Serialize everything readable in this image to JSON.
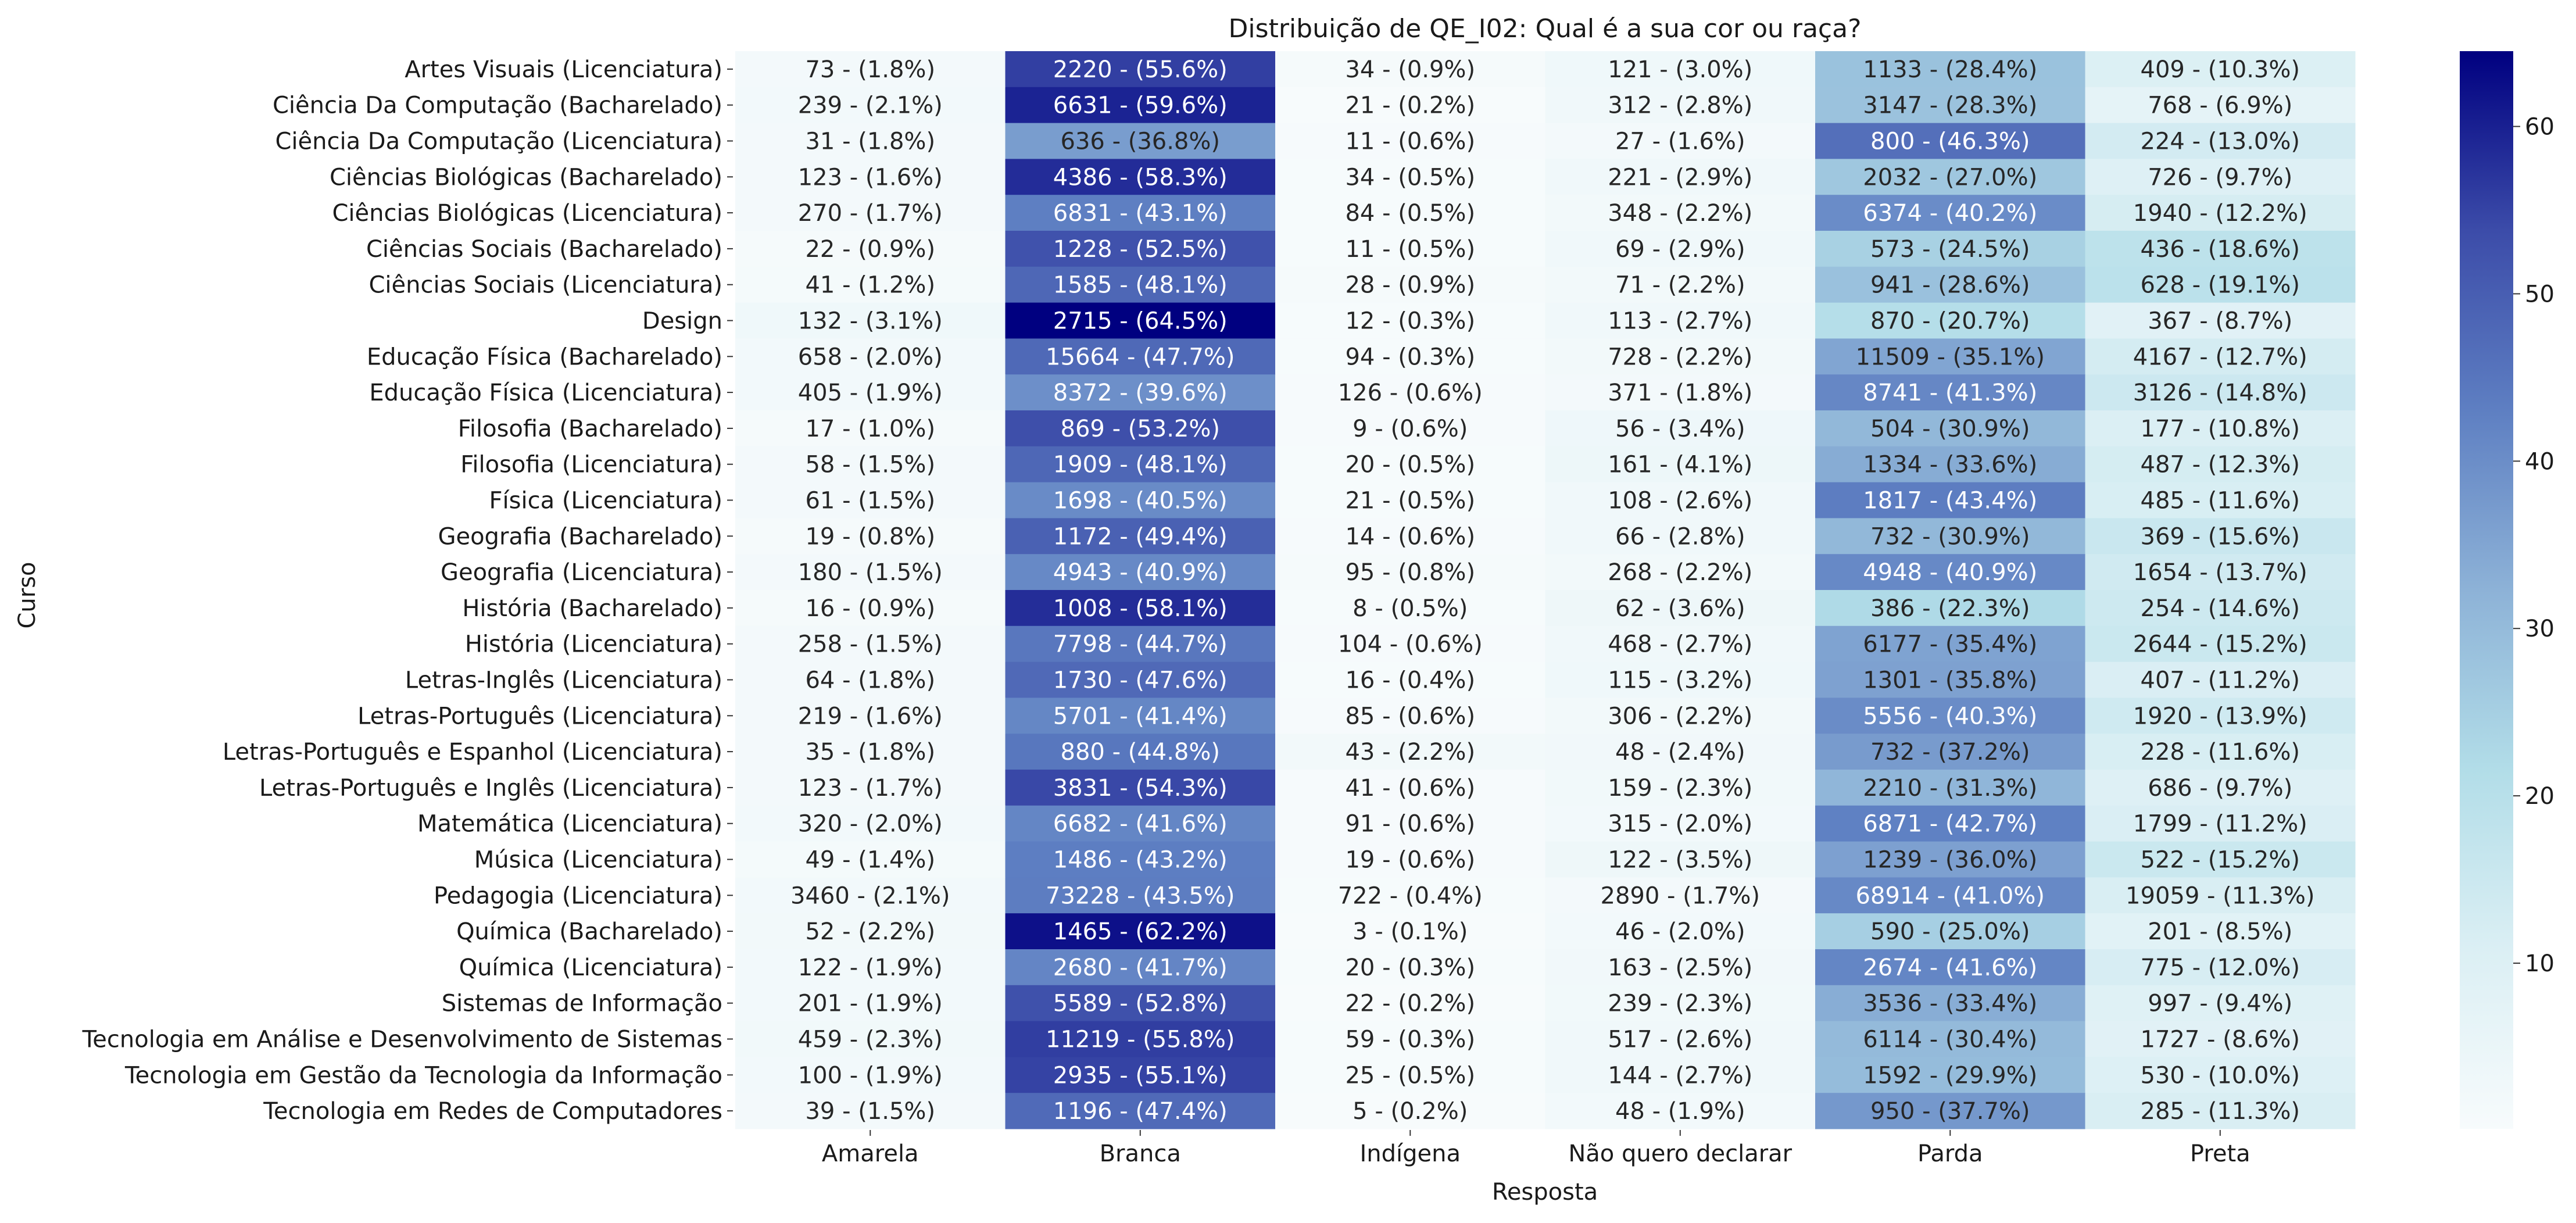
{
  "chart_data": {
    "type": "heatmap",
    "title": "Distribuição de QE_I02: Qual é a sua cor ou raça?",
    "xlabel": "Resposta",
    "ylabel": "Curso",
    "columns": [
      "Amarela",
      "Branca",
      "Indígena",
      "Não quero declarar",
      "Parda",
      "Preta"
    ],
    "rows": [
      {
        "label": "Artes Visuais (Licenciatura)",
        "counts": [
          73,
          2220,
          34,
          121,
          1133,
          409
        ],
        "percents": [
          1.8,
          55.6,
          0.9,
          3.0,
          28.4,
          10.3
        ]
      },
      {
        "label": "Ciência Da Computação (Bacharelado)",
        "counts": [
          239,
          6631,
          21,
          312,
          3147,
          768
        ],
        "percents": [
          2.1,
          59.6,
          0.2,
          2.8,
          28.3,
          6.9
        ]
      },
      {
        "label": "Ciência Da Computação (Licenciatura)",
        "counts": [
          31,
          636,
          11,
          27,
          800,
          224
        ],
        "percents": [
          1.8,
          36.8,
          0.6,
          1.6,
          46.3,
          13.0
        ]
      },
      {
        "label": "Ciências Biológicas (Bacharelado)",
        "counts": [
          123,
          4386,
          34,
          221,
          2032,
          726
        ],
        "percents": [
          1.6,
          58.3,
          0.5,
          2.9,
          27.0,
          9.7
        ]
      },
      {
        "label": "Ciências Biológicas (Licenciatura)",
        "counts": [
          270,
          6831,
          84,
          348,
          6374,
          1940
        ],
        "percents": [
          1.7,
          43.1,
          0.5,
          2.2,
          40.2,
          12.2
        ]
      },
      {
        "label": "Ciências Sociais (Bacharelado)",
        "counts": [
          22,
          1228,
          11,
          69,
          573,
          436
        ],
        "percents": [
          0.9,
          52.5,
          0.5,
          2.9,
          24.5,
          18.6
        ]
      },
      {
        "label": "Ciências Sociais (Licenciatura)",
        "counts": [
          41,
          1585,
          28,
          71,
          941,
          628
        ],
        "percents": [
          1.2,
          48.1,
          0.9,
          2.2,
          28.6,
          19.1
        ]
      },
      {
        "label": "Design",
        "counts": [
          132,
          2715,
          12,
          113,
          870,
          367
        ],
        "percents": [
          3.1,
          64.5,
          0.3,
          2.7,
          20.7,
          8.7
        ]
      },
      {
        "label": "Educação Física (Bacharelado)",
        "counts": [
          658,
          15664,
          94,
          728,
          11509,
          4167
        ],
        "percents": [
          2.0,
          47.7,
          0.3,
          2.2,
          35.1,
          12.7
        ]
      },
      {
        "label": "Educação Física (Licenciatura)",
        "counts": [
          405,
          8372,
          126,
          371,
          8741,
          3126
        ],
        "percents": [
          1.9,
          39.6,
          0.6,
          1.8,
          41.3,
          14.8
        ]
      },
      {
        "label": "Filosofia (Bacharelado)",
        "counts": [
          17,
          869,
          9,
          56,
          504,
          177
        ],
        "percents": [
          1.0,
          53.2,
          0.6,
          3.4,
          30.9,
          10.8
        ]
      },
      {
        "label": "Filosofia (Licenciatura)",
        "counts": [
          58,
          1909,
          20,
          161,
          1334,
          487
        ],
        "percents": [
          1.5,
          48.1,
          0.5,
          4.1,
          33.6,
          12.3
        ]
      },
      {
        "label": "Física (Licenciatura)",
        "counts": [
          61,
          1698,
          21,
          108,
          1817,
          485
        ],
        "percents": [
          1.5,
          40.5,
          0.5,
          2.6,
          43.4,
          11.6
        ]
      },
      {
        "label": "Geografia (Bacharelado)",
        "counts": [
          19,
          1172,
          14,
          66,
          732,
          369
        ],
        "percents": [
          0.8,
          49.4,
          0.6,
          2.8,
          30.9,
          15.6
        ]
      },
      {
        "label": "Geografia (Licenciatura)",
        "counts": [
          180,
          4943,
          95,
          268,
          4948,
          1654
        ],
        "percents": [
          1.5,
          40.9,
          0.8,
          2.2,
          40.9,
          13.7
        ]
      },
      {
        "label": "História (Bacharelado)",
        "counts": [
          16,
          1008,
          8,
          62,
          386,
          254
        ],
        "percents": [
          0.9,
          58.1,
          0.5,
          3.6,
          22.3,
          14.6
        ]
      },
      {
        "label": "História (Licenciatura)",
        "counts": [
          258,
          7798,
          104,
          468,
          6177,
          2644
        ],
        "percents": [
          1.5,
          44.7,
          0.6,
          2.7,
          35.4,
          15.2
        ]
      },
      {
        "label": "Letras-Inglês (Licenciatura)",
        "counts": [
          64,
          1730,
          16,
          115,
          1301,
          407
        ],
        "percents": [
          1.8,
          47.6,
          0.4,
          3.2,
          35.8,
          11.2
        ]
      },
      {
        "label": "Letras-Português (Licenciatura)",
        "counts": [
          219,
          5701,
          85,
          306,
          5556,
          1920
        ],
        "percents": [
          1.6,
          41.4,
          0.6,
          2.2,
          40.3,
          13.9
        ]
      },
      {
        "label": "Letras-Português e Espanhol (Licenciatura)",
        "counts": [
          35,
          880,
          43,
          48,
          732,
          228
        ],
        "percents": [
          1.8,
          44.8,
          2.2,
          2.4,
          37.2,
          11.6
        ]
      },
      {
        "label": "Letras-Português e Inglês (Licenciatura)",
        "counts": [
          123,
          3831,
          41,
          159,
          2210,
          686
        ],
        "percents": [
          1.7,
          54.3,
          0.6,
          2.3,
          31.3,
          9.7
        ]
      },
      {
        "label": "Matemática (Licenciatura)",
        "counts": [
          320,
          6682,
          91,
          315,
          6871,
          1799
        ],
        "percents": [
          2.0,
          41.6,
          0.6,
          2.0,
          42.7,
          11.2
        ]
      },
      {
        "label": "Música (Licenciatura)",
        "counts": [
          49,
          1486,
          19,
          122,
          1239,
          522
        ],
        "percents": [
          1.4,
          43.2,
          0.6,
          3.5,
          36.0,
          15.2
        ]
      },
      {
        "label": "Pedagogia (Licenciatura)",
        "counts": [
          3460,
          73228,
          722,
          2890,
          68914,
          19059
        ],
        "percents": [
          2.1,
          43.5,
          0.4,
          1.7,
          41.0,
          11.3
        ]
      },
      {
        "label": "Química (Bacharelado)",
        "counts": [
          52,
          1465,
          3,
          46,
          590,
          201
        ],
        "percents": [
          2.2,
          62.2,
          0.1,
          2.0,
          25.0,
          8.5
        ]
      },
      {
        "label": "Química (Licenciatura)",
        "counts": [
          122,
          2680,
          20,
          163,
          2674,
          775
        ],
        "percents": [
          1.9,
          41.7,
          0.3,
          2.5,
          41.6,
          12.0
        ]
      },
      {
        "label": "Sistemas de Informação",
        "counts": [
          201,
          5589,
          22,
          239,
          3536,
          997
        ],
        "percents": [
          1.9,
          52.8,
          0.2,
          2.3,
          33.4,
          9.4
        ]
      },
      {
        "label": "Tecnologia em Análise e Desenvolvimento de Sistemas",
        "counts": [
          459,
          11219,
          59,
          517,
          6114,
          1727
        ],
        "percents": [
          2.3,
          55.8,
          0.3,
          2.6,
          30.4,
          8.6
        ]
      },
      {
        "label": "Tecnologia em Gestão da Tecnologia da Informação",
        "counts": [
          100,
          2935,
          25,
          144,
          1592,
          530
        ],
        "percents": [
          1.9,
          55.1,
          0.5,
          2.7,
          29.9,
          10.0
        ]
      },
      {
        "label": "Tecnologia em Redes de Computadores",
        "counts": [
          39,
          1196,
          5,
          48,
          950,
          285
        ],
        "percents": [
          1.5,
          47.4,
          0.2,
          1.9,
          37.7,
          11.3
        ]
      }
    ],
    "colorbar": {
      "min": 0.1,
      "max": 64.5,
      "ticks": [
        10,
        20,
        30,
        40,
        50,
        60
      ],
      "colors": [
        "#f7fbfc",
        "#dbeff4",
        "#b2dde8",
        "#8db2d7",
        "#5e7fc2",
        "#3c4ca9",
        "#000080"
      ]
    },
    "legend": "right"
  }
}
